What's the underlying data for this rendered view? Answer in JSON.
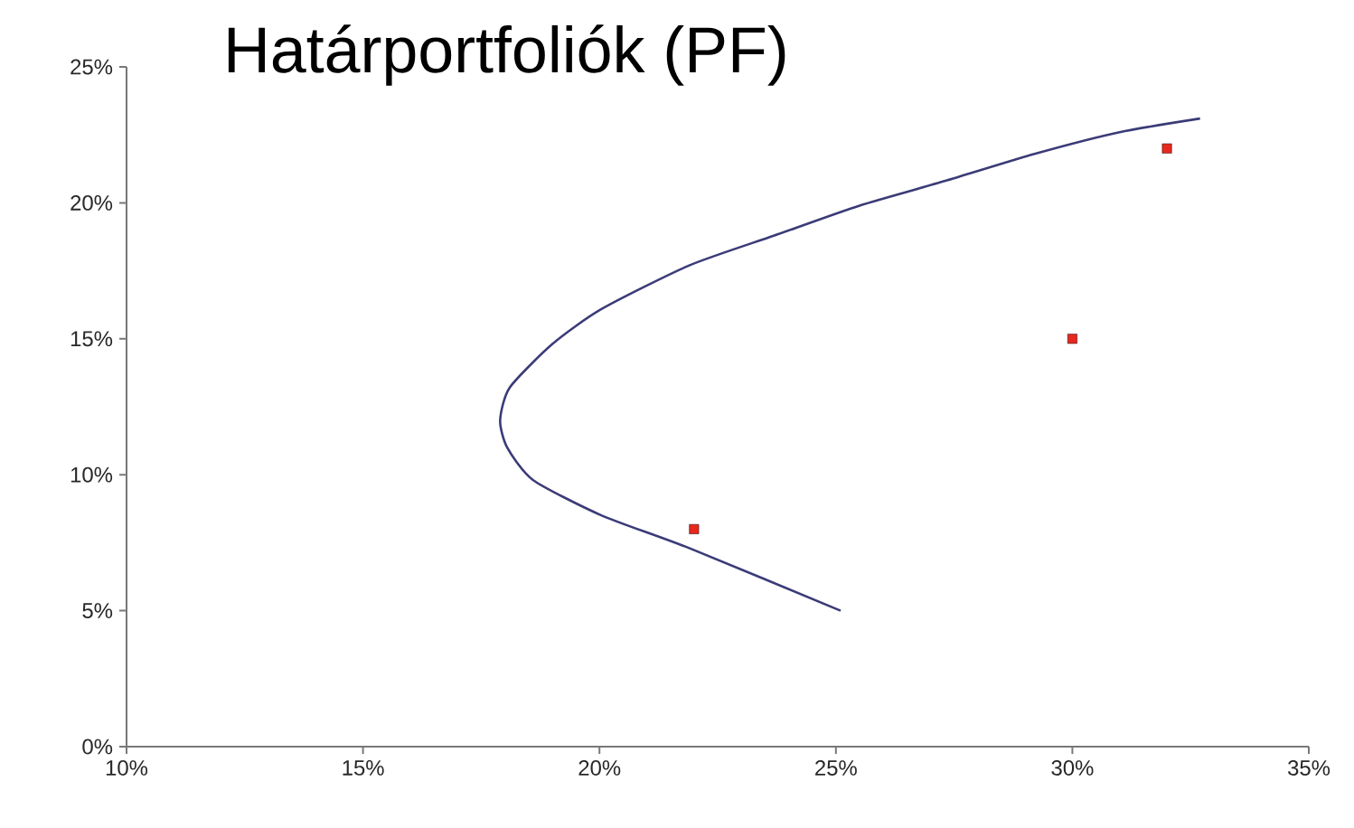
{
  "chart_data": {
    "type": "line",
    "title": "Határportfoliók (PF)",
    "series": [
      {
        "color": "#3b3b78",
        "marker": "none",
        "x": [
          25.1,
          21.9,
          20.05,
          18.6,
          18.05,
          17.9,
          18.1,
          19.0,
          20.05,
          21.9,
          23.7,
          25.5,
          27.3,
          29.2,
          31.0,
          32.7
        ],
        "values": [
          5,
          7.3,
          8.5,
          9.8,
          11.0,
          12.0,
          13.2,
          14.8,
          16.1,
          17.7,
          18.8,
          19.9,
          20.8,
          21.8,
          22.6,
          23.1
        ]
      },
      {
        "type": "scatter",
        "color": "#e8281e",
        "marker": "square",
        "x": [
          22,
          30,
          32
        ],
        "values": [
          8,
          15,
          22
        ]
      }
    ],
    "xlim": [
      10,
      35
    ],
    "ylim": [
      0,
      25
    ],
    "xticks": [
      {
        "value": 10,
        "label": "10%"
      },
      {
        "value": 15,
        "label": "15%"
      },
      {
        "value": 20,
        "label": "20%"
      },
      {
        "value": 25,
        "label": "25%"
      },
      {
        "value": 30,
        "label": "30%"
      },
      {
        "value": 35,
        "label": "35%"
      }
    ],
    "yticks": [
      {
        "value": 0,
        "label": "0%"
      },
      {
        "value": 5,
        "label": "5%"
      },
      {
        "value": 10,
        "label": "10%"
      },
      {
        "value": 15,
        "label": "15%"
      },
      {
        "value": 20,
        "label": "20%"
      },
      {
        "value": 25,
        "label": "25%"
      }
    ],
    "grid": false
  }
}
